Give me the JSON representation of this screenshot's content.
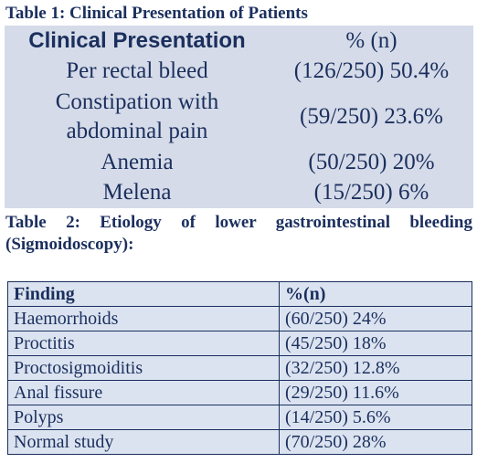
{
  "table1": {
    "caption": "Table 1: Clinical Presentation of Patients",
    "header": [
      "Clinical Presentation",
      "% (n)"
    ],
    "rows": [
      [
        "Per rectal bleed",
        "(126/250) 50.4%"
      ],
      [
        "Constipation with abdominal pain",
        "(59/250) 23.6%"
      ],
      [
        "Anemia",
        "(50/250) 20%"
      ],
      [
        "Melena",
        "(15/250) 6%"
      ]
    ]
  },
  "table2": {
    "caption": "Table 2: Etiology of lower gastrointestinal bleeding (Sigmoidoscopy):",
    "header": [
      "Finding",
      "%(n)"
    ],
    "rows": [
      [
        "Haemorrhoids",
        "(60/250) 24%"
      ],
      [
        "Proctitis",
        "(45/250) 18%"
      ],
      [
        "Proctosigmoiditis",
        "(32/250) 12.8%"
      ],
      [
        "Anal fissure",
        "(29/250) 11.6%"
      ],
      [
        "Polyps",
        "(14/250) 5.6%"
      ],
      [
        "Normal study",
        "(70/250) 28%"
      ]
    ]
  }
}
